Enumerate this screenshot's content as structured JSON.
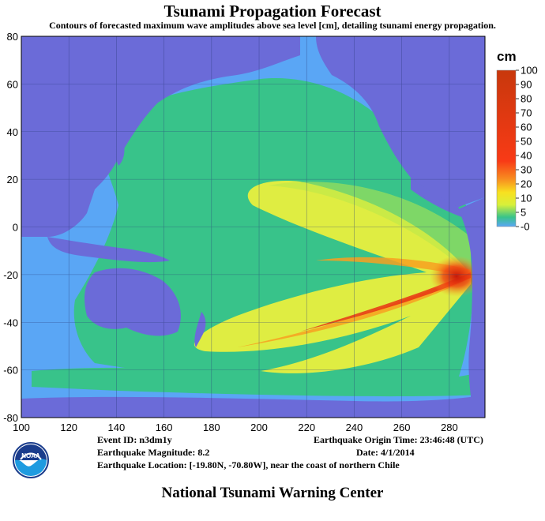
{
  "title": "Tsunami Propagation Forecast",
  "subtitle": "Contours of forecasted maximum wave amplitudes above sea level [cm], detailing tsunami energy propagation.",
  "map": {
    "x_ticks": [
      100,
      120,
      140,
      160,
      180,
      200,
      220,
      240,
      260,
      280
    ],
    "y_ticks": [
      80,
      60,
      40,
      20,
      0,
      -20,
      -40,
      -60,
      -80
    ],
    "x_range": [
      100,
      295
    ],
    "y_range": [
      -80,
      80
    ],
    "epicenter": {
      "lon": 289.2,
      "lat": -19.8
    }
  },
  "colorbar": {
    "unit": "cm",
    "ticks": [
      "100",
      "90",
      "80",
      "70",
      "60",
      "50",
      "40",
      "30",
      "20",
      "10",
      "5",
      "-0"
    ]
  },
  "info": {
    "event_id": "Event ID: n3dm1y",
    "magnitude": "Earthquake Magnitude: 8.2",
    "location": "Earthquake Location: [-19.80N, -70.80W], near the coast of northern Chile",
    "origin_time": "Earthquake Origin Time: 23:46:48 (UTC)",
    "date": "Date: 4/1/2014"
  },
  "logo_text": "NOAA",
  "footer": "National Tsunami Warning Center",
  "colors": {
    "land": "#6b6bd8",
    "ocean_low": "#5aa6f5",
    "ocean_mid": "#38c38a",
    "yellow": "#f2f23a",
    "red": "#d21e0a"
  }
}
